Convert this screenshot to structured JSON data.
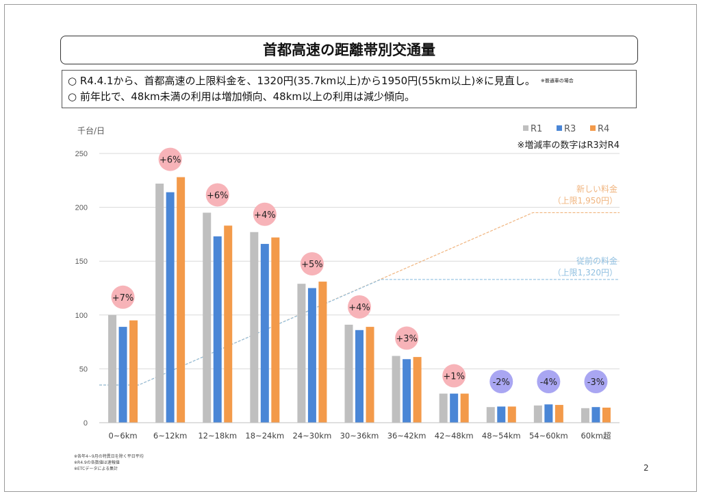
{
  "title": "首都高速の距離帯別交通量",
  "summary": {
    "line1": "○ R4.4.1から、首都高速の上限料金を、1320円(35.7km以上)から1950円(55km以上)※に見直し。",
    "line1_note": "※普通車の場合",
    "line2": "○ 前年比で、48km未満の利用は増加傾向、48km以上の利用は減少傾向。"
  },
  "footnotes": [
    "※各年4~9月の特異日を除く平日平均",
    "※R4.9の各数値は速報値",
    "※ETCデータによる集計"
  ],
  "page_number": "2",
  "chart_data": {
    "type": "bar",
    "ylabel": "千台/日",
    "ylim": [
      0,
      250
    ],
    "yticks": [
      0,
      50,
      100,
      150,
      200,
      250
    ],
    "grid": true,
    "legend_position": "top-right",
    "legend_note": "※増減率の数字はR3対R4",
    "categories": [
      "0~6km",
      "6~12km",
      "12~18km",
      "18~24km",
      "24~30km",
      "30~36km",
      "36~42km",
      "42~48km",
      "48~54km",
      "54~60km",
      "60km超"
    ],
    "series": [
      {
        "name": "R1",
        "color": "#bfbfbf",
        "values": [
          100,
          222,
          195,
          177,
          129,
          91,
          62,
          27,
          14.5,
          16,
          13.5
        ]
      },
      {
        "name": "R3",
        "color": "#4a86d6",
        "values": [
          89,
          214,
          173,
          166,
          125,
          86,
          59,
          27,
          15,
          17,
          14.5
        ]
      },
      {
        "name": "R4",
        "color": "#f39a4a",
        "values": [
          95,
          228,
          183,
          172,
          131,
          89,
          61,
          27,
          15,
          16.5,
          14
        ]
      }
    ],
    "change_labels": [
      "+7%",
      "+6%",
      "+6%",
      "+4%",
      "+5%",
      "+4%",
      "+3%",
      "+1%",
      "-2%",
      "-4%",
      "-3%"
    ],
    "change_colors": {
      "positive": "#f7b3b8",
      "negative": "#a9a6f2"
    },
    "fare_lines": [
      {
        "label1": "新しい料金",
        "label2": "（上限1,950円）",
        "color": "#f0b47e",
        "points_km": [
          [
            0,
            35
          ],
          [
            5,
            35
          ],
          [
            55,
            195
          ],
          [
            66,
            195
          ]
        ]
      },
      {
        "label1": "従前の料金",
        "label2": "（上限1,320円）",
        "color": "#8fbfe0",
        "points_km": [
          [
            0,
            35
          ],
          [
            5,
            35
          ],
          [
            35.7,
            133
          ],
          [
            66,
            133
          ]
        ]
      }
    ]
  }
}
